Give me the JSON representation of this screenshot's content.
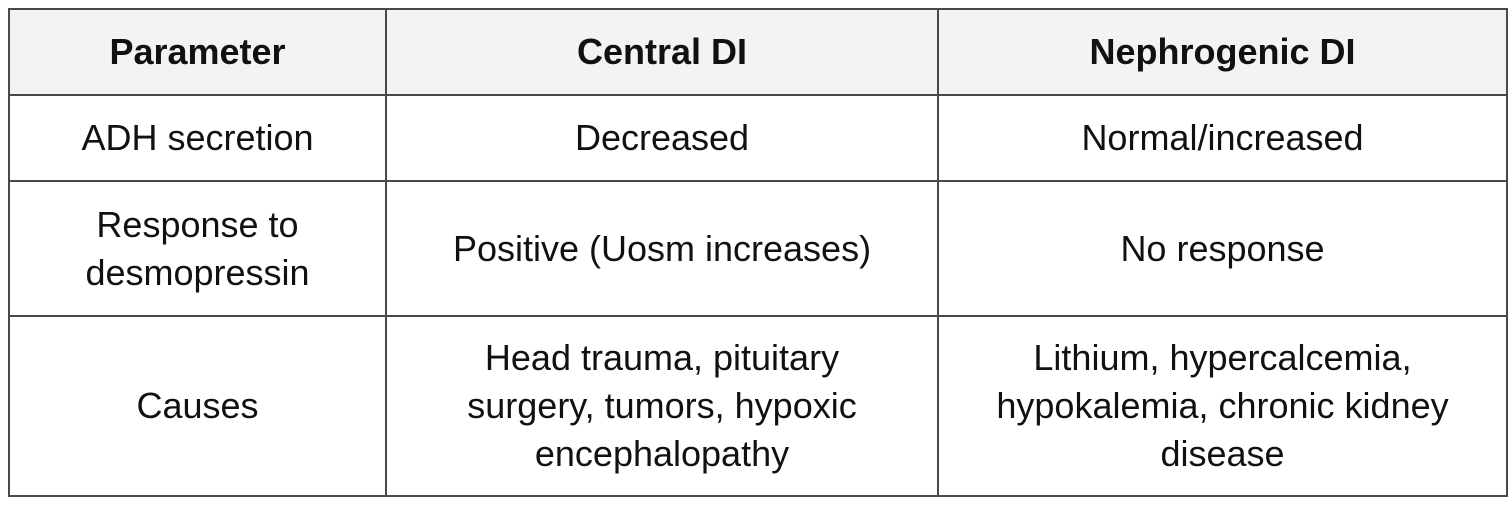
{
  "table": {
    "header": [
      "Parameter",
      "Central DI",
      "Nephrogenic DI"
    ],
    "rows": [
      [
        "ADH secretion",
        "Decreased",
        "Normal/increased"
      ],
      [
        "Response to desmopressin",
        "Positive (Uosm increases)",
        "No response"
      ],
      [
        "Causes",
        "Head trauma, pituitary surgery, tumors, hypoxic encephalopathy",
        "Lithium, hypercalcemia, hypokalemia, chronic kidney disease"
      ]
    ]
  }
}
